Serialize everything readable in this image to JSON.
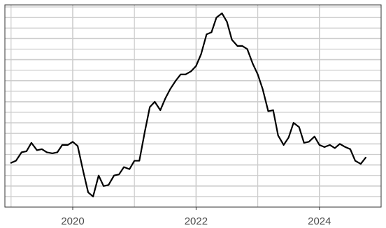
{
  "chart_data": {
    "type": "line",
    "title": "",
    "xlabel": "",
    "ylabel": "",
    "x_tick_labels": [
      "2020",
      "2022",
      "2024"
    ],
    "x_ticks": [
      2020,
      2022,
      2024
    ],
    "xlim": [
      2018.9,
      2025.0
    ],
    "ylim": [
      0.0,
      9.6
    ],
    "y_tick_labels_shown": false,
    "grid": true,
    "line_color": "#000000",
    "grid_color": "#cccccc",
    "series": [
      {
        "x": [
          2019.0,
          2019.08,
          2019.17,
          2019.25,
          2019.33,
          2019.42,
          2019.5,
          2019.58,
          2019.67,
          2019.75,
          2019.83,
          2019.92,
          2020.0,
          2020.08,
          2020.17,
          2020.25,
          2020.33,
          2020.42,
          2020.5,
          2020.58,
          2020.67,
          2020.75,
          2020.83,
          2020.92,
          2021.0,
          2021.08,
          2021.17,
          2021.25,
          2021.33,
          2021.42,
          2021.5,
          2021.58,
          2021.67,
          2021.75,
          2021.83,
          2021.92,
          2022.0,
          2022.08,
          2022.17,
          2022.25,
          2022.33,
          2022.42,
          2022.5,
          2022.58,
          2022.67,
          2022.75,
          2022.83,
          2022.92,
          2023.0,
          2023.08,
          2023.17,
          2023.25,
          2023.33,
          2023.42,
          2023.5,
          2023.58,
          2023.67,
          2023.75,
          2023.83,
          2023.92,
          2024.0,
          2024.08,
          2024.17,
          2024.25,
          2024.33,
          2024.42,
          2024.5,
          2024.58,
          2024.67,
          2024.75
        ],
        "y": [
          2.1,
          2.2,
          2.6,
          2.65,
          3.05,
          2.7,
          2.75,
          2.6,
          2.55,
          2.6,
          2.95,
          2.95,
          3.1,
          2.9,
          1.7,
          0.7,
          0.5,
          1.5,
          1.0,
          1.05,
          1.5,
          1.55,
          1.9,
          1.8,
          2.2,
          2.2,
          3.6,
          4.75,
          5.0,
          4.6,
          5.15,
          5.6,
          6.0,
          6.3,
          6.3,
          6.45,
          6.7,
          7.25,
          8.2,
          8.3,
          9.0,
          9.2,
          8.8,
          7.95,
          7.65,
          7.65,
          7.5,
          6.8,
          6.3,
          5.6,
          4.55,
          4.6,
          3.4,
          2.95,
          3.3,
          4.0,
          3.8,
          3.05,
          3.1,
          3.35,
          2.95,
          2.85,
          2.95,
          2.8,
          3.0,
          2.85,
          2.75,
          2.2,
          2.05,
          2.35
        ]
      }
    ]
  }
}
